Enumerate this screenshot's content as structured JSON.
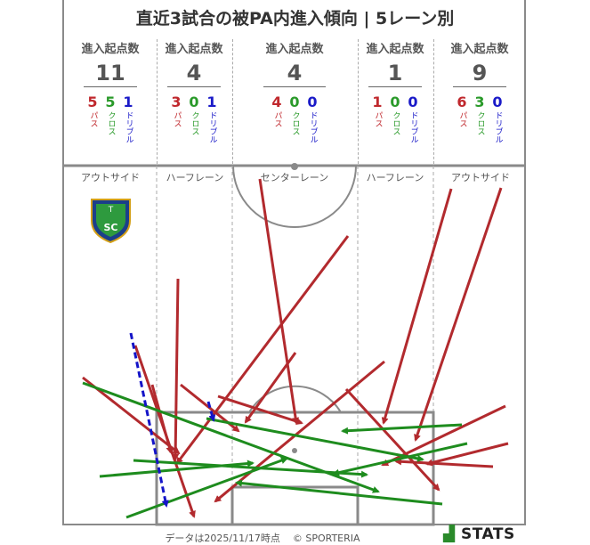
{
  "title": "直近3試合の被PA内進入傾向 | 5レーン別",
  "stat_header": "進入起点数",
  "breakdown_labels": {
    "pass": "パス",
    "cross": "クロス",
    "dribble": "ドリブル"
  },
  "lanes": [
    {
      "name": "アウトサイド",
      "total": "11",
      "pass": "5",
      "cross": "5",
      "dribble": "1"
    },
    {
      "name": "ハーフレーン",
      "total": "4",
      "pass": "3",
      "cross": "0",
      "dribble": "1"
    },
    {
      "name": "センターレーン",
      "total": "4",
      "pass": "4",
      "cross": "0",
      "dribble": "0"
    },
    {
      "name": "ハーフレーン",
      "total": "1",
      "pass": "1",
      "cross": "0",
      "dribble": "0"
    },
    {
      "name": "アウトサイド",
      "total": "9",
      "pass": "6",
      "cross": "3",
      "dribble": "0"
    }
  ],
  "colors": {
    "pass": "#b22a2e",
    "cross": "#1e8c1e",
    "dribble": "#1414c8",
    "pitch_line": "#8a8a8a"
  },
  "club_logo": {
    "icon": "club-crest-icon",
    "letters": "SC"
  },
  "footer": {
    "date_text": "データは2025/11/17時点",
    "credit": "© SPORTERIA"
  },
  "brand": "STATS"
}
